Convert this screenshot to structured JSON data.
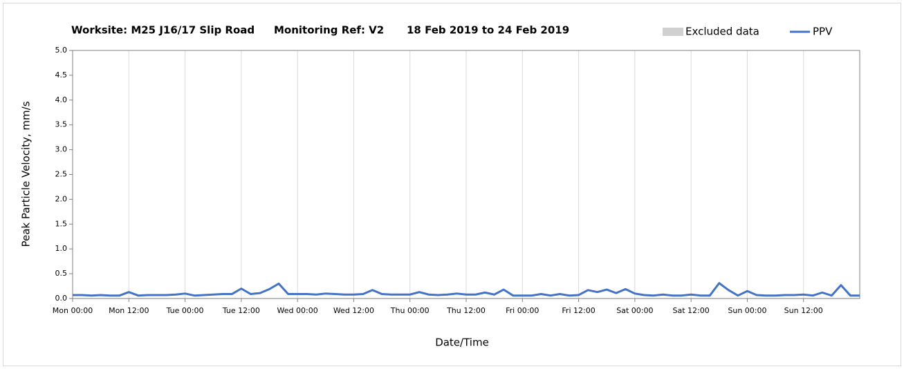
{
  "chart_data": {
    "type": "line",
    "title": "Worksite: M25 J16/17 Slip Road",
    "subtitle": [
      "Monitoring Ref: V2",
      "18 Feb 2019 to 24 Feb 2019"
    ],
    "y_label": "Peak Particle Velocity, mm/s",
    "x_label": "Date/Time",
    "categories": [
      "Mon 00:00",
      null,
      null,
      null,
      null,
      null,
      "Mon 12:00",
      null,
      null,
      null,
      null,
      null,
      "Tue 00:00",
      null,
      null,
      null,
      null,
      null,
      "Tue 12:00",
      null,
      null,
      null,
      null,
      null,
      "Wed 00:00",
      null,
      null,
      null,
      null,
      null,
      "Wed 12:00",
      null,
      null,
      null,
      null,
      null,
      "Thu 00:00",
      null,
      null,
      null,
      null,
      null,
      "Thu 12:00",
      null,
      null,
      null,
      null,
      null,
      "Fri 00:00",
      null,
      null,
      null,
      null,
      null,
      "Fri 12:00",
      null,
      null,
      null,
      null,
      null,
      "Sat 00:00",
      null,
      null,
      null,
      null,
      null,
      "Sat 12:00",
      null,
      null,
      null,
      null,
      null,
      "Sun 00:00",
      null,
      null,
      null,
      null,
      null,
      "Sun 12:00",
      null,
      null,
      null,
      null,
      null,
      null
    ],
    "series": [
      {
        "name": "Excluded data",
        "color": "#d0d0d0",
        "values": [
          null,
          null,
          null,
          null,
          null,
          null,
          null,
          null,
          null,
          null,
          null,
          null,
          null,
          null,
          null,
          null,
          null,
          null,
          null,
          null,
          null,
          null,
          null,
          null,
          null,
          null,
          null,
          null,
          null,
          null,
          null,
          null,
          null,
          null,
          null,
          null,
          null,
          null,
          null,
          null,
          null,
          null,
          null,
          null,
          null,
          null,
          null,
          null,
          null,
          null,
          null,
          null,
          null,
          null,
          null,
          null,
          null,
          null,
          null,
          null,
          null,
          null,
          null,
          null,
          null,
          null,
          null,
          null,
          null,
          null,
          null,
          null,
          null,
          null,
          null,
          null,
          null,
          null,
          null,
          null,
          null,
          null,
          null,
          null,
          null
        ]
      },
      {
        "name": "PPV",
        "color": "#4472c4",
        "values": [
          0.07,
          0.07,
          0.06,
          0.07,
          0.06,
          0.06,
          0.13,
          0.06,
          0.07,
          0.07,
          0.07,
          0.08,
          0.1,
          0.06,
          0.07,
          0.08,
          0.09,
          0.09,
          0.2,
          0.09,
          0.11,
          0.19,
          0.3,
          0.09,
          0.09,
          0.09,
          0.08,
          0.1,
          0.09,
          0.08,
          0.08,
          0.09,
          0.17,
          0.09,
          0.08,
          0.08,
          0.08,
          0.13,
          0.08,
          0.07,
          0.08,
          0.1,
          0.08,
          0.08,
          0.12,
          0.08,
          0.18,
          0.06,
          0.06,
          0.06,
          0.09,
          0.06,
          0.09,
          0.06,
          0.07,
          0.17,
          0.13,
          0.18,
          0.11,
          0.19,
          0.1,
          0.07,
          0.06,
          0.08,
          0.06,
          0.06,
          0.08,
          0.06,
          0.06,
          0.31,
          0.17,
          0.06,
          0.15,
          0.07,
          0.06,
          0.06,
          0.07,
          0.07,
          0.08,
          0.06,
          0.12,
          0.06,
          0.27,
          0.06,
          0.06
        ]
      }
    ],
    "ylim": [
      0,
      5
    ],
    "yticks": [
      {
        "value": 0,
        "label": "0.0"
      },
      0.5,
      {
        "value": 1,
        "label": "1.0"
      },
      1.5,
      {
        "value": 2,
        "label": "2.0"
      },
      2.5,
      {
        "value": 3,
        "label": "3.0"
      },
      3.5,
      {
        "value": 4,
        "label": "4.0"
      },
      4.5,
      {
        "value": 5,
        "label": "5.0"
      }
    ],
    "grid": true
  }
}
